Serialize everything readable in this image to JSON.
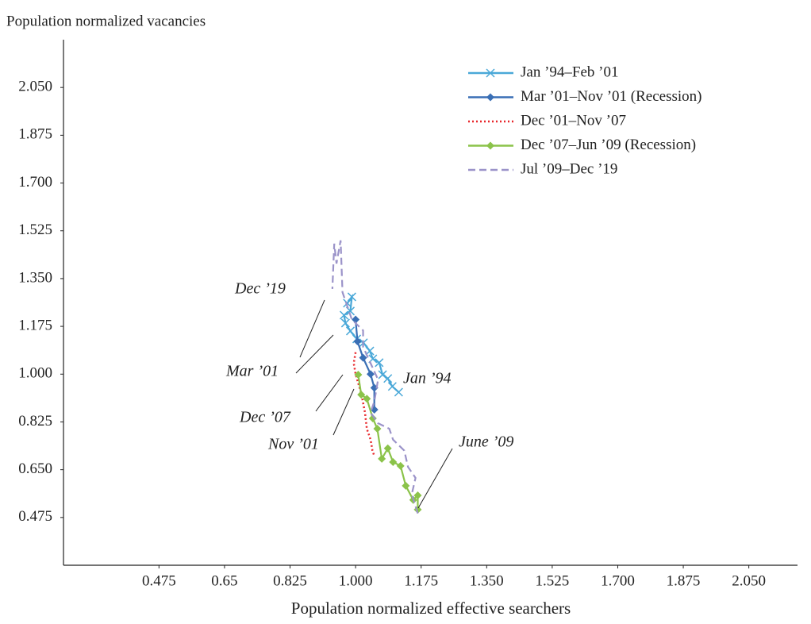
{
  "chart_data": {
    "type": "line",
    "ylabel": "Population normalized vacancies",
    "xlabel": "Population normalized effective searchers",
    "xlim": [
      0.22,
      2.18
    ],
    "ylim": [
      0.3,
      2.225
    ],
    "xticks": [
      0.475,
      0.65,
      0.825,
      {
        "value": 1.0,
        "label": "1.000"
      },
      1.175,
      {
        "value": 1.35,
        "label": "1.350"
      },
      1.525,
      {
        "value": 1.7,
        "label": "1.700"
      },
      1.875,
      {
        "value": 2.05,
        "label": "2.050"
      }
    ],
    "yticks": [
      0.475,
      {
        "value": 0.65,
        "label": "0.650"
      },
      0.825,
      {
        "value": 1.0,
        "label": "1.000"
      },
      1.175,
      {
        "value": 1.35,
        "label": "1.350"
      },
      1.525,
      {
        "value": 1.7,
        "label": "1.700"
      },
      1.875,
      {
        "value": 2.05,
        "label": "2.050"
      }
    ],
    "legend": "upper right",
    "series": [
      {
        "name": "Jan ’94–Feb ’01",
        "color": "#4aa8d8",
        "style": "solid",
        "marker": "x",
        "x": [
          1.115,
          1.098,
          1.086,
          1.072,
          1.063,
          1.046,
          1.038,
          1.021,
          1.003,
          0.986,
          0.973,
          0.969,
          0.986,
          0.99,
          0.978
        ],
        "values": [
          0.934,
          0.955,
          0.984,
          0.998,
          1.042,
          1.056,
          1.085,
          1.115,
          1.129,
          1.158,
          1.187,
          1.216,
          1.231,
          1.283,
          1.26
        ]
      },
      {
        "name": "Mar ’01–Nov ’01 (Recession)",
        "color": "#3a6fb5",
        "style": "solid",
        "marker": "diamond",
        "x": [
          1.0,
          1.005,
          1.02,
          1.04,
          1.05,
          1.05
        ],
        "values": [
          1.2,
          1.12,
          1.06,
          1.0,
          0.95,
          0.87
        ]
      },
      {
        "name": "Dec ’01–Nov ’07",
        "color": "#e8262a",
        "style": "dotted",
        "marker": null,
        "x": [
          1.0,
          0.995,
          1.0,
          1.015,
          1.025,
          1.03,
          1.04,
          1.045,
          1.05
        ],
        "values": [
          1.08,
          1.04,
          1.0,
          0.93,
          0.86,
          0.8,
          0.76,
          0.72,
          0.7
        ]
      },
      {
        "name": "Dec ’07–Jun ’09 (Recession)",
        "color": "#8bc34a",
        "style": "solid",
        "marker": "diamond",
        "x": [
          1.007,
          1.015,
          1.03,
          1.046,
          1.058,
          1.07,
          1.086,
          1.1,
          1.12,
          1.134,
          1.154,
          1.166,
          1.166
        ],
        "values": [
          0.998,
          0.925,
          0.91,
          0.838,
          0.8,
          0.69,
          0.728,
          0.678,
          0.664,
          0.591,
          0.539,
          0.556,
          0.504
        ]
      },
      {
        "name": "Jul ’09–Dec ’19",
        "color": "#9b93c9",
        "style": "dashed",
        "marker": null,
        "x": [
          1.166,
          1.15,
          1.16,
          1.14,
          1.13,
          1.1,
          1.09,
          1.06,
          1.04,
          1.05,
          1.06,
          1.04,
          1.02,
          1.02,
          0.99,
          0.98,
          0.965,
          0.96,
          0.949,
          0.943,
          0.938
        ],
        "values": [
          0.49,
          0.56,
          0.62,
          0.66,
          0.72,
          0.76,
          0.8,
          0.82,
          0.86,
          0.9,
          0.98,
          1.04,
          1.1,
          1.16,
          1.2,
          1.24,
          1.3,
          1.49,
          1.405,
          1.478,
          1.312
        ]
      }
    ],
    "annotations": [
      "Dec ’19",
      "Mar ’01",
      "Jan ’94",
      "Dec ’07",
      "Nov ’01",
      "June ’09"
    ]
  }
}
